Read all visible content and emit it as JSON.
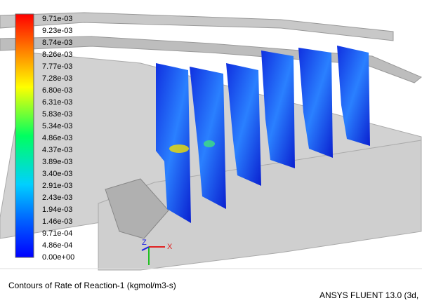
{
  "colorbar": {
    "labels": [
      "9.71e-03",
      "9.23e-03",
      "8.74e-03",
      "8.26e-03",
      "7.77e-03",
      "7.28e-03",
      "6.80e-03",
      "6.31e-03",
      "5.83e-03",
      "5.34e-03",
      "4.86e-03",
      "4.37e-03",
      "3.89e-03",
      "3.40e-03",
      "2.91e-03",
      "2.43e-03",
      "1.94e-03",
      "1.46e-03",
      "9.71e-04",
      "4.86e-04",
      "0.00e+00"
    ]
  },
  "axes": {
    "x": "X",
    "z": "Z"
  },
  "caption": "Contours of Rate of Reaction-1 (kgmol/m3-s)",
  "software": "ANSYS FLUENT 13.0 (3d,"
}
